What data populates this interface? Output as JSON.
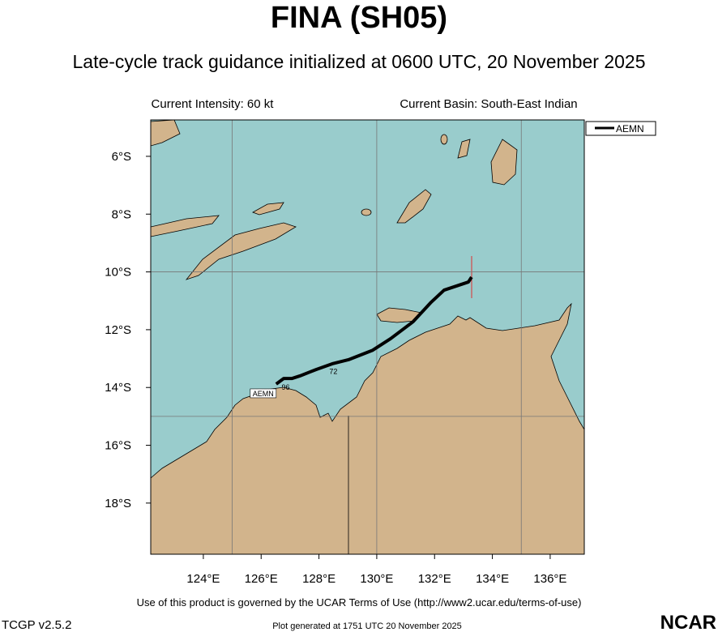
{
  "title": "FINA (SH05)",
  "subtitle": "Late-cycle track guidance initialized at 0600 UTC, 20 November 2025",
  "current_intensity": "Current Intensity: 60 kt",
  "current_basin": "Current Basin: South-East Indian",
  "map": {
    "lon_range": [
      122.18,
      137.18
    ],
    "lat_range": [
      -4.74,
      -19.77
    ],
    "lon_ticks": [
      {
        "value": 124,
        "label": "124°E"
      },
      {
        "value": 126,
        "label": "126°E"
      },
      {
        "value": 128,
        "label": "128°E"
      },
      {
        "value": 130,
        "label": "130°E"
      },
      {
        "value": 132,
        "label": "132°E"
      },
      {
        "value": 134,
        "label": "134°E"
      },
      {
        "value": 136,
        "label": "136°E"
      }
    ],
    "lat_ticks": [
      {
        "value": -6,
        "label": "6°S"
      },
      {
        "value": -8,
        "label": "8°S"
      },
      {
        "value": -10,
        "label": "10°S"
      },
      {
        "value": -12,
        "label": "12°S"
      },
      {
        "value": -14,
        "label": "14°S"
      },
      {
        "value": -16,
        "label": "16°S"
      },
      {
        "value": -18,
        "label": "18°S"
      }
    ],
    "grid_lons": [
      125,
      130,
      135
    ],
    "grid_lats": [
      -10,
      -15
    ]
  },
  "track": {
    "name": "AEMN",
    "lon": [
      133.28,
      133.17,
      132.33,
      131.88,
      131.26,
      130.48,
      129.86,
      129.02,
      128.46,
      127.9,
      127.34,
      127.06,
      126.78,
      126.52
    ],
    "lat": [
      -10.18,
      -10.35,
      -10.63,
      -11.05,
      -11.72,
      -12.31,
      -12.71,
      -13.04,
      -13.18,
      -13.38,
      -13.6,
      -13.69,
      -13.69,
      -13.88
    ],
    "hour_labels": [
      {
        "lon": 128.5,
        "lat": -13.28,
        "label": "72"
      },
      {
        "lon": 126.85,
        "lat": -13.82,
        "label": "96"
      }
    ]
  },
  "footer": {
    "terms": "Use of this product is governed by the UCAR Terms of Use (http://www2.ucar.edu/terms-of-use)",
    "version": "TCGP v2.5.2",
    "generated": "Plot generated at 1751 UTC   20 November 2025",
    "logo": "NCAR"
  }
}
